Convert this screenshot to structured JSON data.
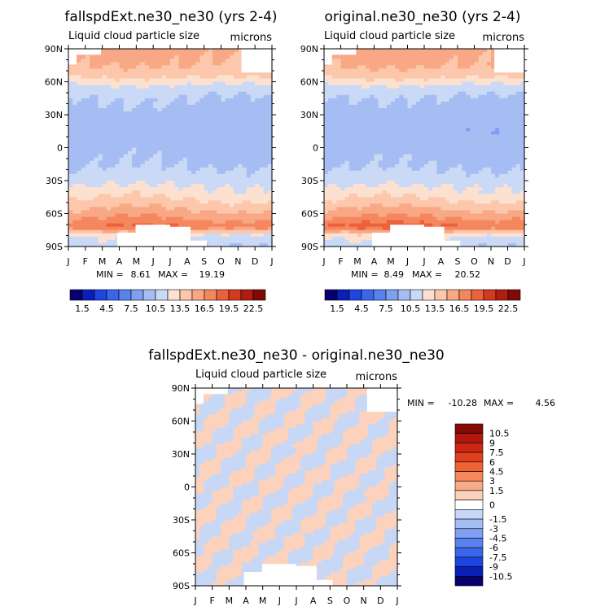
{
  "chart_data": [
    {
      "type": "heatmap",
      "title": "fallspdExt.ne30_ne30 (yrs 2-4)",
      "subtitle": "Liquid cloud particle size",
      "units": "microns",
      "xlabels": [
        "J",
        "F",
        "M",
        "A",
        "M",
        "J",
        "J",
        "A",
        "S",
        "O",
        "N",
        "D",
        "J"
      ],
      "ylabels": [
        "90N",
        "60N",
        "30N",
        "0",
        "30S",
        "60S",
        "90S"
      ],
      "ylim": [
        -90,
        90
      ],
      "min_label": "MIN =",
      "min": "8.61",
      "max_label": "MAX =",
      "max": "19.19",
      "colorbar_labels": [
        "1.5",
        "4.5",
        "7.5",
        "10.5",
        "13.5",
        "16.5",
        "19.5",
        "22.5"
      ],
      "zonal_profile": [
        {
          "lat": 90,
          "value": 15.5
        },
        {
          "lat": 75,
          "value": 15.0
        },
        {
          "lat": 65,
          "value": 13.8
        },
        {
          "lat": 55,
          "value": 11.5
        },
        {
          "lat": 45,
          "value": 10.5
        },
        {
          "lat": 30,
          "value": 9.8
        },
        {
          "lat": 15,
          "value": 9.6
        },
        {
          "lat": 0,
          "value": 9.9
        },
        {
          "lat": -15,
          "value": 10.3
        },
        {
          "lat": -30,
          "value": 11.4
        },
        {
          "lat": -45,
          "value": 13.2
        },
        {
          "lat": -55,
          "value": 14.8
        },
        {
          "lat": -65,
          "value": 16.5
        },
        {
          "lat": -72,
          "value": 18.0
        },
        {
          "lat": -80,
          "value": 12.0
        },
        {
          "lat": -90,
          "value": 11.0
        }
      ]
    },
    {
      "type": "heatmap",
      "title": "original.ne30_ne30 (yrs 2-4)",
      "subtitle": "Liquid cloud particle size",
      "units": "microns",
      "xlabels": [
        "J",
        "F",
        "M",
        "A",
        "M",
        "J",
        "J",
        "A",
        "S",
        "O",
        "N",
        "D",
        "J"
      ],
      "ylabels": [
        "90N",
        "60N",
        "30N",
        "0",
        "30S",
        "60S",
        "90S"
      ],
      "ylim": [
        -90,
        90
      ],
      "min_label": "MIN =",
      "min": "8.49",
      "max_label": "MAX =",
      "max": "20.52",
      "colorbar_labels": [
        "1.5",
        "4.5",
        "7.5",
        "10.5",
        "13.5",
        "16.5",
        "19.5",
        "22.5"
      ],
      "zonal_profile": [
        {
          "lat": 90,
          "value": 15.6
        },
        {
          "lat": 75,
          "value": 15.2
        },
        {
          "lat": 65,
          "value": 13.9
        },
        {
          "lat": 55,
          "value": 11.5
        },
        {
          "lat": 45,
          "value": 10.4
        },
        {
          "lat": 30,
          "value": 9.7
        },
        {
          "lat": 15,
          "value": 9.5
        },
        {
          "lat": 0,
          "value": 9.8
        },
        {
          "lat": -15,
          "value": 10.2
        },
        {
          "lat": -30,
          "value": 11.3
        },
        {
          "lat": -45,
          "value": 13.2
        },
        {
          "lat": -55,
          "value": 14.9
        },
        {
          "lat": -65,
          "value": 16.8
        },
        {
          "lat": -72,
          "value": 18.5
        },
        {
          "lat": -80,
          "value": 12.5
        },
        {
          "lat": -90,
          "value": 11.0
        }
      ]
    },
    {
      "type": "heatmap",
      "title": "fallspdExt.ne30_ne30 - original.ne30_ne30",
      "subtitle": "Liquid cloud particle size",
      "units": "microns",
      "xlabels": [
        "J",
        "F",
        "M",
        "A",
        "M",
        "J",
        "J",
        "A",
        "S",
        "O",
        "N",
        "D",
        "J"
      ],
      "ylabels": [
        "90N",
        "60N",
        "30N",
        "0",
        "30S",
        "60S",
        "90S"
      ],
      "ylim": [
        -90,
        90
      ],
      "min_label": "MIN =",
      "min": "-10.28",
      "max_label": "MAX =",
      "max": "4.56",
      "colorbar_labels": [
        "10.5",
        "9",
        "7.5",
        "6",
        "4.5",
        "3",
        "1.5",
        "0",
        "-1.5",
        "-3",
        "-4.5",
        "-6",
        "-7.5",
        "-9",
        "-10.5"
      ],
      "zonal_profile": [
        {
          "lat": 90,
          "value": 0.5
        },
        {
          "lat": 60,
          "value": -0.5
        },
        {
          "lat": 30,
          "value": 0.5
        },
        {
          "lat": 0,
          "value": -0.5
        },
        {
          "lat": -30,
          "value": 0.5
        },
        {
          "lat": -60,
          "value": -0.5
        },
        {
          "lat": -90,
          "value": 0.5
        }
      ]
    }
  ],
  "colors": {
    "full_scale": [
      "#08006e",
      "#0a1fb8",
      "#1d46e0",
      "#3a66ea",
      "#5a82ee",
      "#7e9ff2",
      "#a6bdf4",
      "#cad9f6",
      "#fde1d0",
      "#fcc7aa",
      "#f9a885",
      "#f5875f",
      "#ec603c",
      "#d43a20",
      "#b01e10",
      "#800a05"
    ],
    "diff_scale": [
      "#840a06",
      "#b0180d",
      "#cc2712",
      "#e1401e",
      "#ef6233",
      "#f5875d",
      "#f9ab87",
      "#fcd2bc",
      "#ffffff",
      "#c7d7f6",
      "#a4bdf4",
      "#7e9ff2",
      "#5a82ee",
      "#3a66ea",
      "#1d46e0",
      "#0a1fb8",
      "#08006e"
    ],
    "missing": "#ffffff"
  }
}
